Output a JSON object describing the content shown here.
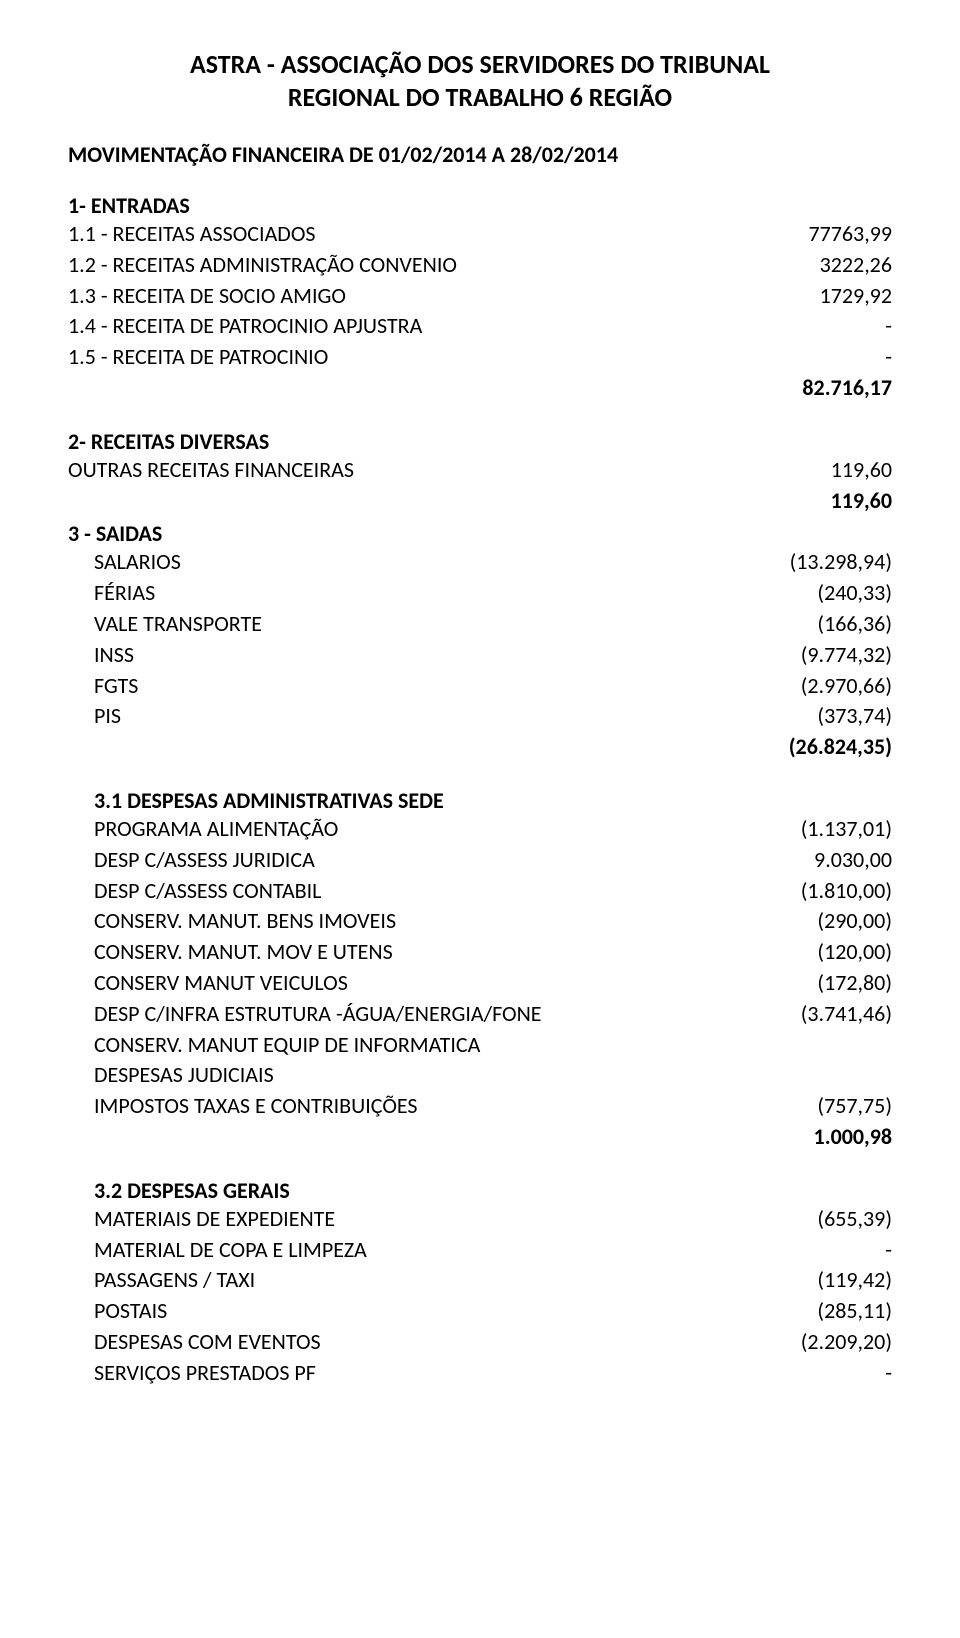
{
  "text_color": "#000000",
  "background_color": "#ffffff",
  "title_fontsize": 26,
  "body_fontsize": 22,
  "header": {
    "line1": "ASTRA -  ASSOCIAÇÃO DOS SERVIDORES DO TRIBUNAL",
    "line2": "REGIONAL DO TRABALHO 6 REGIÃO"
  },
  "period": "MOVIMENTAÇÃO FINANCEIRA DE 01/02/2014 A  28/02/2014",
  "entradas": {
    "heading": "1-  ENTRADAS",
    "items": [
      {
        "label": "1.1 - RECEITAS ASSOCIADOS",
        "value": "77763,99"
      },
      {
        "label": "1.2 - RECEITAS ADMINISTRAÇÃO CONVENIO",
        "value": "3222,26"
      },
      {
        "label": "1.3 - RECEITA DE SOCIO AMIGO",
        "value": "1729,92"
      },
      {
        "label": "1.4 - RECEITA DE PATROCINIO APJUSTRA",
        "value": "-"
      },
      {
        "label": "1.5 - RECEITA DE PATROCINIO",
        "value": "-"
      }
    ],
    "subtotal": "82.716,17"
  },
  "receitas_diversas": {
    "heading": "2- RECEITAS  DIVERSAS",
    "items": [
      {
        "label": "OUTRAS RECEITAS FINANCEIRAS",
        "value": "119,60"
      }
    ],
    "subtotal": "119,60"
  },
  "saidas": {
    "heading": "3 - SAIDAS",
    "items": [
      {
        "label": "SALARIOS",
        "value": "(13.298,94)"
      },
      {
        "label": "FÉRIAS",
        "value": "(240,33)"
      },
      {
        "label": "VALE TRANSPORTE",
        "value": "(166,36)"
      },
      {
        "label": "INSS",
        "value": "(9.774,32)"
      },
      {
        "label": "FGTS",
        "value": "(2.970,66)"
      },
      {
        "label": "PIS",
        "value": "(373,74)"
      }
    ],
    "subtotal": "(26.824,35)"
  },
  "desp_admin": {
    "heading": "3.1   DESPESAS ADMINISTRATIVAS SEDE",
    "items": [
      {
        "label": "PROGRAMA ALIMENTAÇÃO",
        "value": "(1.137,01)"
      },
      {
        "label": "DESP C/ASSESS JURIDICA",
        "value": "9.030,00"
      },
      {
        "label": "DESP C/ASSESS CONTABIL",
        "value": "(1.810,00)"
      },
      {
        "label": "CONSERV. MANUT. BENS IMOVEIS",
        "value": "(290,00)"
      },
      {
        "label": "CONSERV. MANUT. MOV E UTENS",
        "value": "(120,00)"
      },
      {
        "label": "CONSERV MANUT VEICULOS",
        "value": "(172,80)"
      },
      {
        "label": "DESP C/INFRA ESTRUTURA -ÁGUA/ENERGIA/FONE",
        "value": "(3.741,46)"
      },
      {
        "label": "CONSERV. MANUT EQUIP DE INFORMATICA",
        "value": ""
      },
      {
        "label": "DESPESAS JUDICIAIS",
        "value": ""
      },
      {
        "label": "IMPOSTOS TAXAS E CONTRIBUIÇÕES",
        "value": "(757,75)"
      }
    ],
    "subtotal": "1.000,98"
  },
  "desp_gerais": {
    "heading": "3.2   DESPESAS GERAIS",
    "items": [
      {
        "label": "MATERIAIS DE EXPEDIENTE",
        "value": "(655,39)"
      },
      {
        "label": "MATERIAL DE COPA E LIMPEZA",
        "value": "-"
      },
      {
        "label": "PASSAGENS / TAXI",
        "value": "(119,42)"
      },
      {
        "label": "POSTAIS",
        "value": "(285,11)"
      },
      {
        "label": "DESPESAS COM EVENTOS",
        "value": "(2.209,20)"
      },
      {
        "label": "SERVIÇOS PRESTADOS PF",
        "value": "-"
      }
    ]
  }
}
